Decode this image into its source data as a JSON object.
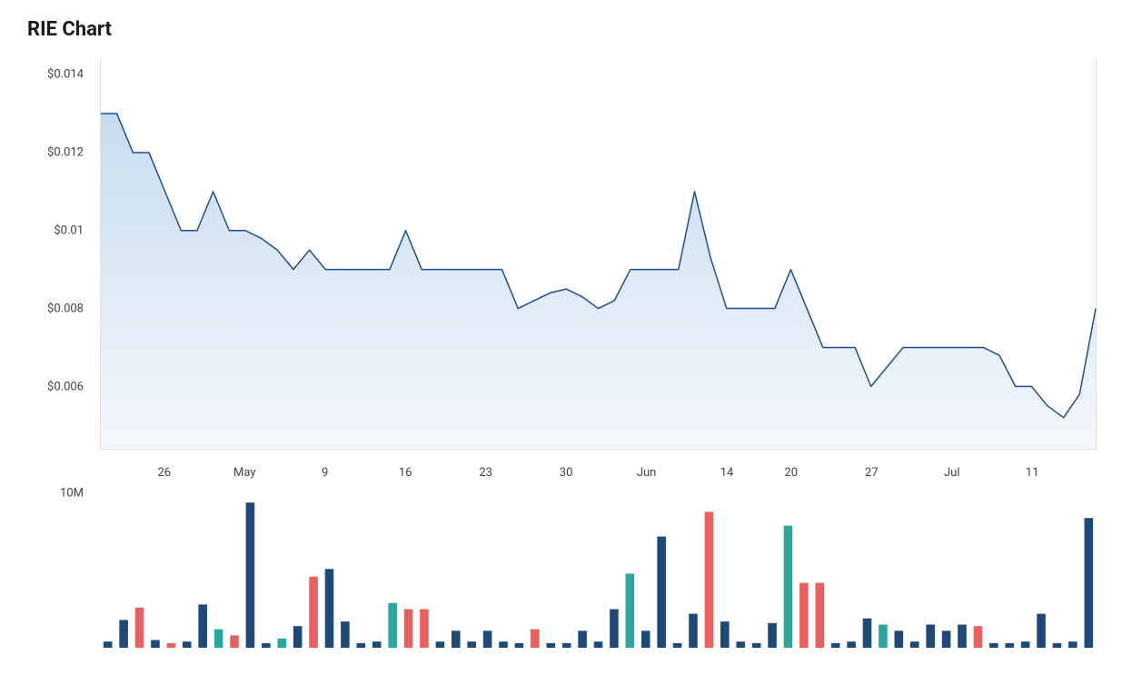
{
  "title": "RIE Chart",
  "price_chart": {
    "type": "area",
    "line_color": "#1f4e96",
    "line_width": 1.5,
    "fill_gradient_top": "#c8dcef",
    "fill_gradient_bottom": "#f4f8fc",
    "border_color": "#e0e0e0",
    "background_color": "#ffffff",
    "y_axis": {
      "min": 0.0044,
      "max": 0.0144,
      "ticks": [
        {
          "value": 0.006,
          "label": "$0.006"
        },
        {
          "value": 0.008,
          "label": "$0.008"
        },
        {
          "value": 0.01,
          "label": "$0.01"
        },
        {
          "value": 0.012,
          "label": "$0.012"
        },
        {
          "value": 0.014,
          "label": "$0.014"
        }
      ],
      "label_fontsize": 13,
      "label_color": "#444444"
    },
    "x_axis": {
      "ticks": [
        {
          "index": 4,
          "label": "26"
        },
        {
          "index": 9,
          "label": "May"
        },
        {
          "index": 14,
          "label": "9"
        },
        {
          "index": 19,
          "label": "16"
        },
        {
          "index": 24,
          "label": "23"
        },
        {
          "index": 29,
          "label": "30"
        },
        {
          "index": 34,
          "label": "Jun"
        },
        {
          "index": 39,
          "label": "14"
        },
        {
          "index": 43,
          "label": "20"
        },
        {
          "index": 48,
          "label": "27"
        },
        {
          "index": 53,
          "label": "Jul"
        },
        {
          "index": 58,
          "label": "11"
        }
      ],
      "label_fontsize": 13,
      "label_color": "#444444"
    },
    "data": [
      0.013,
      0.013,
      0.012,
      0.012,
      0.011,
      0.01,
      0.01,
      0.011,
      0.01,
      0.01,
      0.0098,
      0.0095,
      0.009,
      0.0095,
      0.009,
      0.009,
      0.009,
      0.009,
      0.009,
      0.01,
      0.009,
      0.009,
      0.009,
      0.009,
      0.009,
      0.009,
      0.008,
      0.0082,
      0.0084,
      0.0085,
      0.0083,
      0.008,
      0.0082,
      0.009,
      0.009,
      0.009,
      0.009,
      0.011,
      0.0093,
      0.008,
      0.008,
      0.008,
      0.008,
      0.009,
      0.008,
      0.007,
      0.007,
      0.007,
      0.006,
      0.0065,
      0.007,
      0.007,
      0.007,
      0.007,
      0.007,
      0.007,
      0.0068,
      0.006,
      0.006,
      0.0055,
      0.0052,
      0.0058,
      0.008
    ]
  },
  "volume_chart": {
    "type": "bar",
    "y_axis": {
      "min": 0,
      "max": 10000000,
      "ticks": [
        {
          "value": 10000000,
          "label": "10M"
        }
      ],
      "label_fontsize": 13,
      "label_color": "#444444"
    },
    "colors": {
      "up": "#1e4a7a",
      "down": "#e86060",
      "neutral": "#2aa89c"
    },
    "bar_width_ratio": 0.55,
    "data": [
      {
        "v": 400000,
        "c": "up"
      },
      {
        "v": 1800000,
        "c": "up"
      },
      {
        "v": 2600000,
        "c": "down"
      },
      {
        "v": 500000,
        "c": "up"
      },
      {
        "v": 300000,
        "c": "down"
      },
      {
        "v": 400000,
        "c": "up"
      },
      {
        "v": 2800000,
        "c": "up"
      },
      {
        "v": 1200000,
        "c": "neutral"
      },
      {
        "v": 800000,
        "c": "down"
      },
      {
        "v": 9400000,
        "c": "up"
      },
      {
        "v": 300000,
        "c": "up"
      },
      {
        "v": 600000,
        "c": "neutral"
      },
      {
        "v": 1400000,
        "c": "up"
      },
      {
        "v": 4600000,
        "c": "down"
      },
      {
        "v": 5100000,
        "c": "up"
      },
      {
        "v": 1700000,
        "c": "up"
      },
      {
        "v": 300000,
        "c": "up"
      },
      {
        "v": 400000,
        "c": "up"
      },
      {
        "v": 2900000,
        "c": "neutral"
      },
      {
        "v": 2500000,
        "c": "down"
      },
      {
        "v": 2500000,
        "c": "down"
      },
      {
        "v": 400000,
        "c": "up"
      },
      {
        "v": 1100000,
        "c": "up"
      },
      {
        "v": 400000,
        "c": "up"
      },
      {
        "v": 1100000,
        "c": "up"
      },
      {
        "v": 400000,
        "c": "up"
      },
      {
        "v": 300000,
        "c": "up"
      },
      {
        "v": 1200000,
        "c": "down"
      },
      {
        "v": 300000,
        "c": "up"
      },
      {
        "v": 300000,
        "c": "up"
      },
      {
        "v": 1100000,
        "c": "up"
      },
      {
        "v": 400000,
        "c": "up"
      },
      {
        "v": 2500000,
        "c": "up"
      },
      {
        "v": 4800000,
        "c": "neutral"
      },
      {
        "v": 1100000,
        "c": "up"
      },
      {
        "v": 7200000,
        "c": "up"
      },
      {
        "v": 300000,
        "c": "up"
      },
      {
        "v": 2200000,
        "c": "up"
      },
      {
        "v": 8800000,
        "c": "down"
      },
      {
        "v": 1700000,
        "c": "up"
      },
      {
        "v": 400000,
        "c": "up"
      },
      {
        "v": 300000,
        "c": "up"
      },
      {
        "v": 1600000,
        "c": "up"
      },
      {
        "v": 7900000,
        "c": "neutral"
      },
      {
        "v": 4200000,
        "c": "down"
      },
      {
        "v": 4200000,
        "c": "down"
      },
      {
        "v": 300000,
        "c": "up"
      },
      {
        "v": 400000,
        "c": "up"
      },
      {
        "v": 1900000,
        "c": "up"
      },
      {
        "v": 1500000,
        "c": "neutral"
      },
      {
        "v": 1100000,
        "c": "up"
      },
      {
        "v": 400000,
        "c": "up"
      },
      {
        "v": 1500000,
        "c": "up"
      },
      {
        "v": 1100000,
        "c": "up"
      },
      {
        "v": 1500000,
        "c": "up"
      },
      {
        "v": 1400000,
        "c": "down"
      },
      {
        "v": 300000,
        "c": "up"
      },
      {
        "v": 300000,
        "c": "up"
      },
      {
        "v": 400000,
        "c": "up"
      },
      {
        "v": 2200000,
        "c": "up"
      },
      {
        "v": 300000,
        "c": "up"
      },
      {
        "v": 400000,
        "c": "up"
      },
      {
        "v": 8400000,
        "c": "up"
      }
    ]
  }
}
